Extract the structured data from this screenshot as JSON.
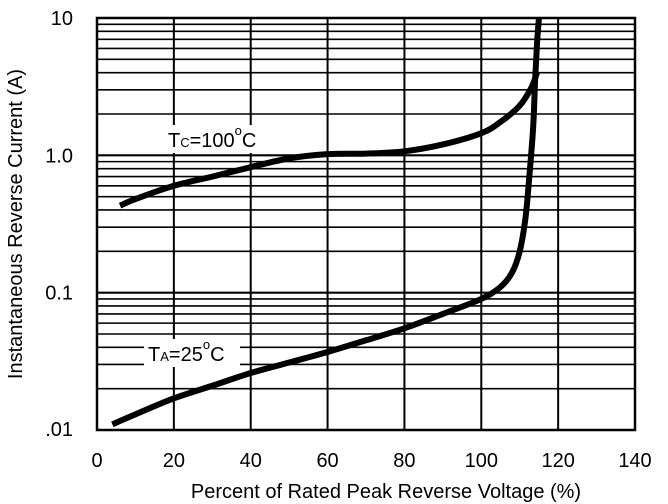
{
  "chart_data": {
    "type": "line",
    "xlabel": "Percent of Rated Peak Reverse Voltage (%)",
    "ylabel": "Instantaneous Reverse Current (A)",
    "x_scale": "linear",
    "y_scale": "log",
    "xlim": [
      0,
      140
    ],
    "ylim": [
      0.01,
      10
    ],
    "x_ticks": [
      0,
      20,
      40,
      60,
      80,
      100,
      120,
      140
    ],
    "x_tick_labels": [
      "0",
      "20",
      "40",
      "60",
      "80",
      "100",
      "120",
      "140"
    ],
    "y_ticks": [
      0.01,
      0.1,
      1,
      10
    ],
    "y_tick_labels": [
      ".01",
      "0.1",
      "1.0",
      "10"
    ],
    "grid": {
      "x": true,
      "y": true,
      "y_minor": true
    },
    "series": [
      {
        "label_parts": {
          "prefix": "T",
          "sub": "C",
          "rest": "=100",
          "deg": "o",
          "unit": "C"
        },
        "color": "#000000",
        "x": [
          6,
          10,
          20,
          30,
          40,
          50,
          60,
          70,
          80,
          90,
          100,
          105,
          110,
          113,
          114.5
        ],
        "y": [
          0.43,
          0.48,
          0.6,
          0.7,
          0.82,
          0.95,
          1.02,
          1.03,
          1.07,
          1.2,
          1.45,
          1.75,
          2.3,
          3.1,
          4.0
        ]
      },
      {
        "label_parts": {
          "prefix": "T",
          "sub": "A",
          "rest": "=25",
          "deg": "o",
          "unit": "C"
        },
        "color": "#000000",
        "x": [
          4,
          10,
          20,
          30,
          40,
          50,
          60,
          70,
          80,
          90,
          100,
          105,
          108,
          110,
          111.5,
          112.5,
          113.5,
          114,
          114.5,
          115
        ],
        "y": [
          0.011,
          0.013,
          0.017,
          0.021,
          0.026,
          0.031,
          0.037,
          0.045,
          0.055,
          0.07,
          0.09,
          0.11,
          0.14,
          0.2,
          0.35,
          0.7,
          1.6,
          3.5,
          6.5,
          10
        ]
      }
    ]
  }
}
